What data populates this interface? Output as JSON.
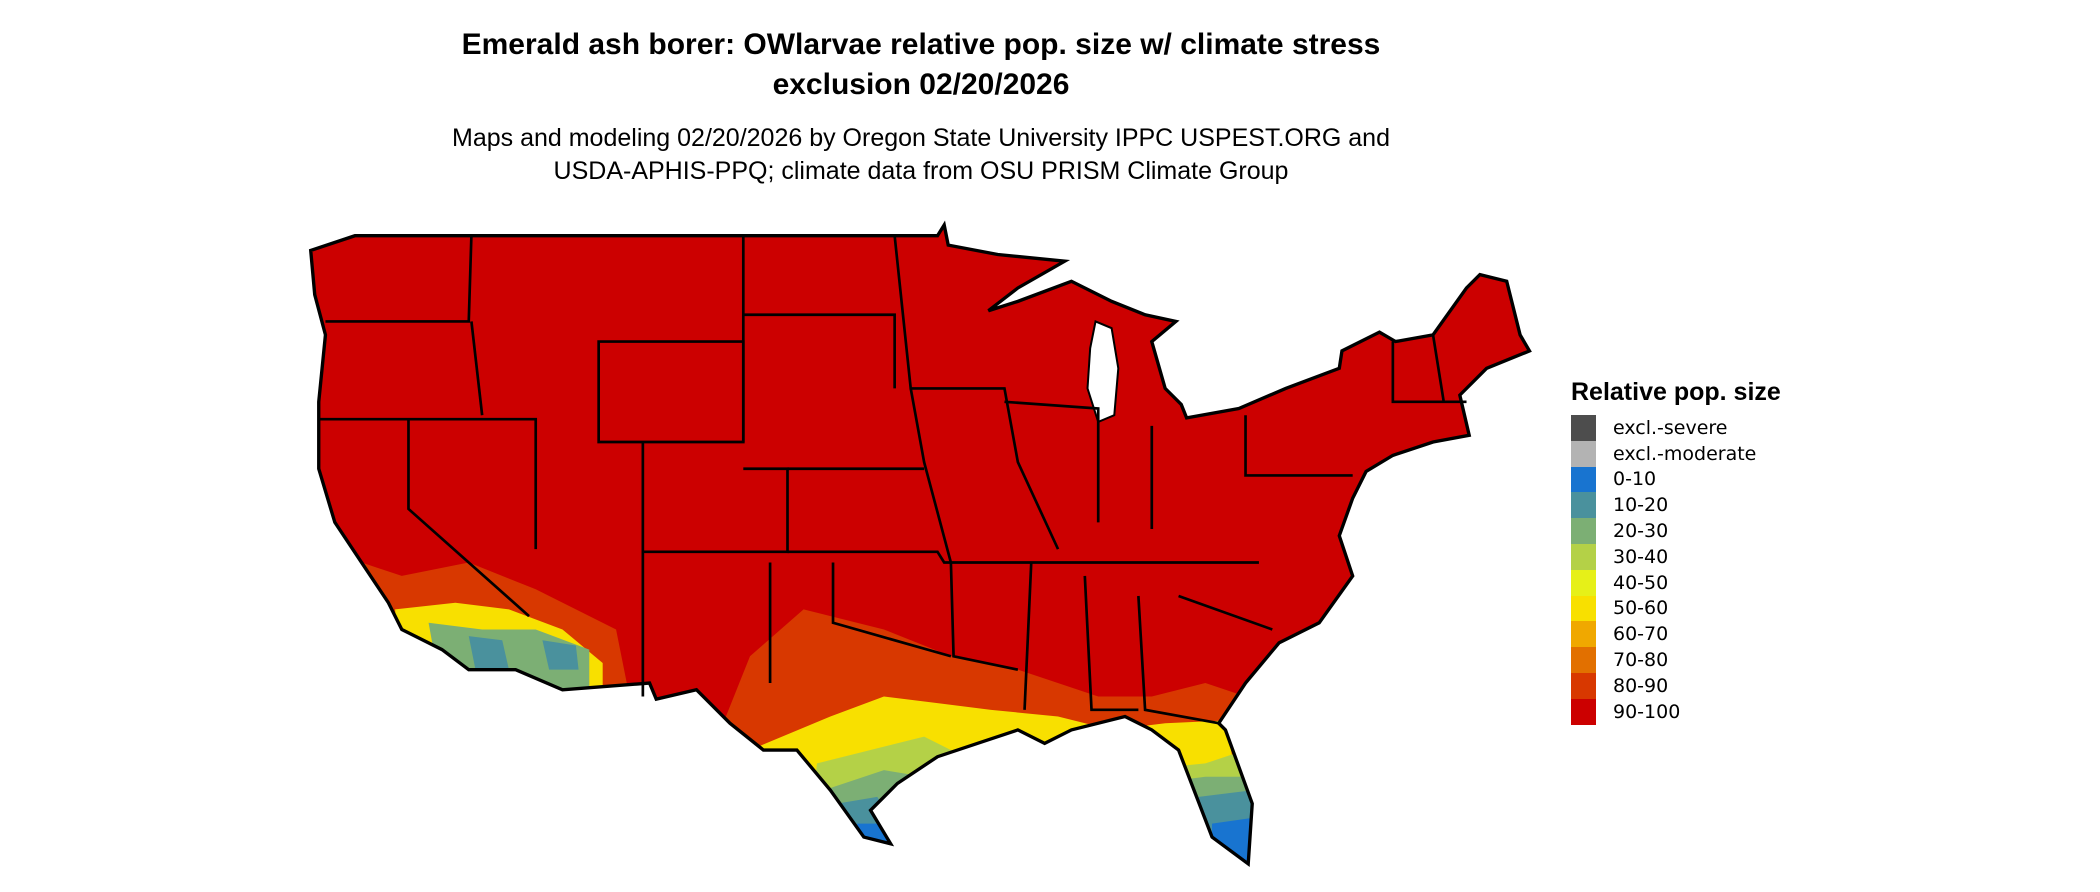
{
  "title_line1": "Emerald ash borer: OWlarvae relative pop. size w/ climate stress",
  "title_line2": "exclusion 02/20/2026",
  "subtitle_line1": "Maps and modeling 02/20/2026 by Oregon State University IPPC USPEST.ORG and",
  "subtitle_line2": "USDA-APHIS-PPQ; climate data from OSU PRISM Climate Group",
  "legend": {
    "title": "Relative pop. size",
    "items": [
      {
        "label": "excl.-severe",
        "color": "#4d4d4d"
      },
      {
        "label": "excl.-moderate",
        "color": "#b3b3b3"
      },
      {
        "label": "0-10",
        "color": "#1874d0"
      },
      {
        "label": "10-20",
        "color": "#4a919d"
      },
      {
        "label": "20-30",
        "color": "#7caf74"
      },
      {
        "label": "30-40",
        "color": "#b4d147"
      },
      {
        "label": "40-50",
        "color": "#e6f018"
      },
      {
        "label": "50-60",
        "color": "#f8e000"
      },
      {
        "label": "60-70",
        "color": "#f0a800"
      },
      {
        "label": "70-80",
        "color": "#e27000"
      },
      {
        "label": "80-90",
        "color": "#d83800"
      },
      {
        "label": "90-100",
        "color": "#cc0000"
      }
    ]
  },
  "map": {
    "region": "Contiguous United States",
    "dominant_class": "90-100",
    "boundary_color": "#000000"
  }
}
